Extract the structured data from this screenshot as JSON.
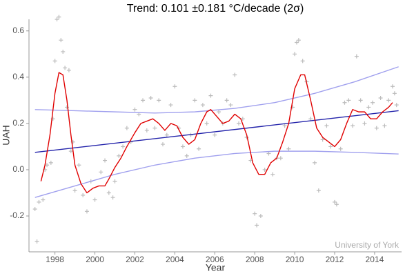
{
  "chart_data": {
    "type": "line",
    "title": "Trend: 0.101 ±0.181 °C/decade (2σ)",
    "x_label": "Year",
    "y_label": "UAH",
    "annotation": "University of York",
    "xlim": [
      1996.7,
      2015.35
    ],
    "ylim": [
      -0.355,
      0.65
    ],
    "xticks": [
      1998,
      2000,
      2002,
      2004,
      2006,
      2008,
      2010,
      2012,
      2014
    ],
    "yticks": [
      -0.2,
      {
        "value": 0,
        "label": "0.0"
      },
      0.2,
      0.4,
      0.6
    ],
    "grid": false,
    "series": [
      {
        "type": "scatter",
        "color": "#bbbbbb",
        "x": [
          1997.0,
          1997.1,
          1997.2,
          1997.4,
          1997.5,
          1997.6,
          1997.8,
          1997.9,
          1998.0,
          1998.1,
          1998.2,
          1998.3,
          1998.4,
          1998.5,
          1998.6,
          1998.7,
          1998.8,
          1998.9,
          1999.0,
          1999.2,
          1999.4,
          1999.6,
          1999.8,
          2000.0,
          2000.3,
          2000.5,
          2000.7,
          2000.9,
          2001.0,
          2001.2,
          2001.4,
          2001.6,
          2001.8,
          2002.0,
          2002.2,
          2002.4,
          2002.6,
          2002.8,
          2003.0,
          2003.2,
          2003.4,
          2003.6,
          2003.8,
          2004.0,
          2004.2,
          2004.4,
          2004.6,
          2004.8,
          2005.0,
          2005.2,
          2005.4,
          2005.6,
          2005.8,
          2006.0,
          2006.2,
          2006.4,
          2006.6,
          2006.8,
          2007.0,
          2007.2,
          2007.4,
          2007.6,
          2007.8,
          2008.0,
          2008.1,
          2008.3,
          2008.5,
          2008.7,
          2008.9,
          2009.1,
          2009.3,
          2009.5,
          2009.7,
          2009.9,
          2010.0,
          2010.1,
          2010.2,
          2010.4,
          2010.6,
          2010.8,
          2011.0,
          2011.2,
          2011.4,
          2011.6,
          2011.8,
          2012.0,
          2012.1,
          2012.3,
          2012.5,
          2012.7,
          2012.9,
          2013.1,
          2013.3,
          2013.5,
          2013.7,
          2013.9,
          2014.1,
          2014.3,
          2014.5,
          2014.7,
          2014.9,
          2015.0,
          2015.1
        ],
        "values": [
          -0.17,
          -0.31,
          -0.14,
          -0.13,
          0.0,
          0.02,
          0.03,
          0.22,
          0.47,
          0.65,
          0.66,
          0.56,
          0.51,
          0.44,
          0.27,
          0.43,
          0.08,
          0.12,
          -0.09,
          0.02,
          -0.11,
          -0.18,
          -0.05,
          -0.13,
          -0.01,
          0.04,
          -0.1,
          -0.12,
          -0.05,
          0.06,
          0.1,
          0.18,
          0.12,
          0.26,
          0.24,
          0.3,
          0.17,
          0.31,
          0.18,
          0.3,
          0.11,
          0.15,
          0.28,
          0.36,
          0.18,
          0.1,
          0.06,
          0.15,
          0.3,
          0.09,
          0.28,
          0.2,
          0.32,
          0.15,
          0.25,
          0.2,
          0.3,
          0.28,
          0.41,
          0.2,
          0.22,
          0.14,
          0.04,
          -0.19,
          -0.24,
          -0.2,
          0.0,
          0.07,
          -0.02,
          0.05,
          0.05,
          0.19,
          0.09,
          0.27,
          0.5,
          0.55,
          0.56,
          0.47,
          0.38,
          0.22,
          0.03,
          -0.09,
          0.13,
          0.19,
          0.1,
          -0.14,
          -0.15,
          0.09,
          0.29,
          0.3,
          0.19,
          0.49,
          0.3,
          0.2,
          0.27,
          0.29,
          0.18,
          0.31,
          0.19,
          0.3,
          0.36,
          0.33,
          0.28
        ]
      },
      {
        "type": "line",
        "color": "#a0a0ee",
        "x": [
          1997,
          1999,
          2001,
          2003,
          2005,
          2007,
          2009,
          2011,
          2013,
          2015.2
        ],
        "values": [
          0.26,
          0.255,
          0.25,
          0.245,
          0.25,
          0.265,
          0.29,
          0.33,
          0.38,
          0.445
        ]
      },
      {
        "type": "line",
        "color": "#a0a0ee",
        "x": [
          1997,
          1999,
          2001,
          2003,
          2005,
          2007,
          2009,
          2011,
          2013,
          2015.2
        ],
        "values": [
          -0.12,
          -0.07,
          -0.02,
          0.02,
          0.05,
          0.07,
          0.08,
          0.08,
          0.075,
          0.068
        ]
      },
      {
        "type": "line",
        "color": "#2222aa",
        "x": [
          1997,
          2015.2
        ],
        "values": [
          0.075,
          0.255
        ]
      },
      {
        "type": "line",
        "color": "#e00000",
        "x": [
          1997.3,
          1997.5,
          1997.75,
          1998.0,
          1998.2,
          1998.4,
          1998.6,
          1998.8,
          1999.0,
          1999.3,
          1999.6,
          1999.9,
          2000.2,
          2000.5,
          2000.7,
          2001.0,
          2001.3,
          2001.6,
          2002.0,
          2002.3,
          2002.6,
          2002.9,
          2003.2,
          2003.5,
          2003.8,
          2004.1,
          2004.4,
          2004.7,
          2005.0,
          2005.3,
          2005.6,
          2005.8,
          2006.1,
          2006.4,
          2006.7,
          2007.0,
          2007.3,
          2007.6,
          2007.9,
          2008.2,
          2008.5,
          2008.8,
          2009.1,
          2009.4,
          2009.7,
          2010.0,
          2010.3,
          2010.5,
          2010.8,
          2011.1,
          2011.4,
          2011.7,
          2012.0,
          2012.3,
          2012.6,
          2012.9,
          2013.2,
          2013.5,
          2013.8,
          2014.1,
          2014.4,
          2014.7,
          2014.9
        ],
        "values": [
          -0.05,
          0.02,
          0.15,
          0.33,
          0.42,
          0.41,
          0.3,
          0.15,
          0.02,
          -0.06,
          -0.1,
          -0.08,
          -0.07,
          -0.07,
          -0.04,
          0.01,
          0.05,
          0.1,
          0.16,
          0.2,
          0.21,
          0.22,
          0.2,
          0.17,
          0.2,
          0.19,
          0.14,
          0.11,
          0.13,
          0.2,
          0.25,
          0.26,
          0.23,
          0.2,
          0.21,
          0.24,
          0.22,
          0.15,
          0.03,
          -0.02,
          -0.02,
          0.03,
          0.05,
          0.12,
          0.2,
          0.35,
          0.41,
          0.41,
          0.3,
          0.18,
          0.14,
          0.12,
          0.1,
          0.13,
          0.2,
          0.26,
          0.25,
          0.25,
          0.22,
          0.22,
          0.25,
          0.27,
          0.29
        ]
      }
    ]
  }
}
